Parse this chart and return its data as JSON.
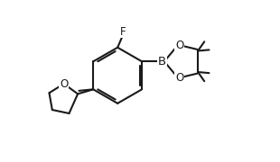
{
  "bg_color": "#ffffff",
  "line_color": "#1a1a1a",
  "line_width": 1.5,
  "font_size": 8.5,
  "figsize": [
    3.1,
    1.8
  ],
  "dpi": 100,
  "xlim": [
    -0.5,
    8.5
  ],
  "ylim": [
    -0.3,
    5.5
  ]
}
